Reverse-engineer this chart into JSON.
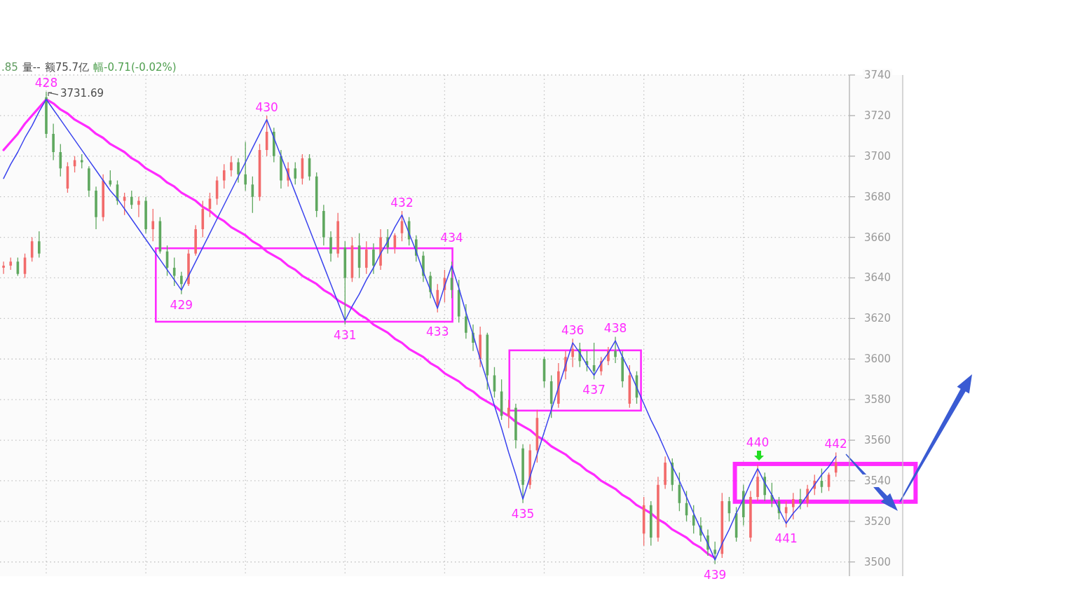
{
  "chart_data": {
    "type": "candlestick",
    "annotations": [
      ".85",
      "量--",
      "额75.7亿",
      "幅-0.71(-0.02%)",
      "3731.69",
      {
        "text": "428",
        "y": 3728
      },
      {
        "text": "429",
        "y": 3634
      },
      {
        "text": "430",
        "y": 3718
      },
      {
        "text": "431",
        "y": 3619
      },
      {
        "text": "432",
        "y": 3671
      },
      {
        "text": "433",
        "y": 3625
      },
      {
        "text": "434",
        "y": 3646
      },
      {
        "text": "435",
        "y": 3531
      },
      {
        "text": "436",
        "y": 3608
      },
      {
        "text": "437",
        "y": 3592
      },
      {
        "text": "438",
        "y": 3609
      },
      {
        "text": "439",
        "y": 3501
      },
      {
        "text": "440",
        "y": 3546
      },
      {
        "text": "441",
        "y": 3519
      },
      {
        "text": "442",
        "y": 3552
      }
    ],
    "categories": [
      null,
      null,
      null,
      null,
      null,
      null,
      null,
      null,
      null,
      null,
      null,
      null,
      null,
      null,
      null,
      null,
      null,
      null,
      null,
      null,
      null,
      null,
      null,
      null,
      null,
      null,
      null,
      null,
      null,
      null,
      null,
      null,
      null,
      null,
      null,
      null,
      null,
      null,
      null,
      null,
      null,
      null,
      null,
      null,
      null,
      null,
      null,
      null,
      null,
      null,
      null,
      null,
      null,
      null,
      null,
      null,
      null,
      null,
      null,
      null,
      null,
      null,
      null,
      null,
      null,
      null,
      null,
      null,
      null,
      null,
      null,
      null,
      null,
      null,
      null,
      null,
      null,
      null,
      null,
      null,
      null,
      null,
      null,
      null,
      null,
      null,
      null,
      null,
      null,
      null,
      null,
      null,
      null,
      null,
      null,
      null,
      null,
      null,
      null,
      null,
      null,
      null,
      null,
      null,
      null,
      null,
      null,
      null,
      null,
      null,
      null,
      null,
      null,
      null,
      null,
      null,
      null,
      null
    ],
    "ohlc": [
      [
        3645,
        3648,
        3642,
        3646
      ],
      [
        3646,
        3650,
        3644,
        3648
      ],
      [
        3648,
        3650,
        3641,
        3642
      ],
      [
        3642,
        3652,
        3640,
        3650
      ],
      [
        3650,
        3660,
        3648,
        3658
      ],
      [
        3658,
        3663,
        3650,
        3652
      ],
      [
        3729,
        3731.69,
        3709,
        3711
      ],
      [
        3711,
        3716,
        3698,
        3702
      ],
      [
        3702,
        3706,
        3690,
        3694
      ],
      [
        3684,
        3697,
        3682,
        3695
      ],
      [
        3695,
        3700,
        3692,
        3698
      ],
      [
        3698,
        3701,
        3694,
        3697
      ],
      [
        3694,
        3695,
        3680,
        3683
      ],
      [
        3683,
        3685,
        3664,
        3670
      ],
      [
        3670,
        3691,
        3668,
        3688
      ],
      [
        3688,
        3693,
        3685,
        3686
      ],
      [
        3686,
        3688,
        3676,
        3678
      ],
      [
        3678,
        3682,
        3671,
        3680
      ],
      [
        3680,
        3683,
        3674,
        3676
      ],
      [
        3676,
        3680,
        3670,
        3678
      ],
      [
        3678,
        3680,
        3662,
        3664
      ],
      [
        3664,
        3674,
        3658,
        3668
      ],
      [
        3668,
        3670,
        3652,
        3653
      ],
      [
        3653,
        3656,
        3641,
        3645
      ],
      [
        3645,
        3650,
        3636,
        3641
      ],
      [
        3641,
        3643,
        3632,
        3637
      ],
      [
        3637,
        3654,
        3636,
        3652
      ],
      [
        3652,
        3666,
        3651,
        3664
      ],
      [
        3664,
        3678,
        3660,
        3674
      ],
      [
        3674,
        3682,
        3670,
        3679
      ],
      [
        3679,
        3690,
        3676,
        3688
      ],
      [
        3688,
        3696,
        3684,
        3693
      ],
      [
        3693,
        3700,
        3690,
        3697
      ],
      [
        3697,
        3699,
        3687,
        3691
      ],
      [
        3691,
        3707,
        3683,
        3686
      ],
      [
        3686,
        3690,
        3672,
        3680
      ],
      [
        3680,
        3706,
        3678,
        3703
      ],
      [
        3703,
        3720,
        3700,
        3712
      ],
      [
        3712,
        3714,
        3697,
        3700
      ],
      [
        3700,
        3703,
        3684,
        3688
      ],
      [
        3688,
        3697,
        3685,
        3694
      ],
      [
        3694,
        3697,
        3686,
        3689
      ],
      [
        3689,
        3701,
        3686,
        3699
      ],
      [
        3699,
        3701,
        3688,
        3690
      ],
      [
        3690,
        3692,
        3670,
        3673
      ],
      [
        3673,
        3676,
        3656,
        3660
      ],
      [
        3660,
        3663,
        3648,
        3652
      ],
      [
        3652,
        3672,
        3650,
        3668
      ],
      [
        3655,
        3658,
        3617,
        3640
      ],
      [
        3640,
        3660,
        3638,
        3656
      ],
      [
        3656,
        3662,
        3640,
        3645
      ],
      [
        3645,
        3658,
        3642,
        3654
      ],
      [
        3654,
        3657,
        3642,
        3646
      ],
      [
        3646,
        3664,
        3644,
        3660
      ],
      [
        3660,
        3664,
        3652,
        3655
      ],
      [
        3655,
        3662,
        3652,
        3661
      ],
      [
        3662,
        3673,
        3658,
        3668
      ],
      [
        3668,
        3670,
        3656,
        3659
      ],
      [
        3659,
        3661,
        3648,
        3651
      ],
      [
        3651,
        3653,
        3638,
        3641
      ],
      [
        3641,
        3643,
        3630,
        3633
      ],
      [
        3626,
        3637,
        3623,
        3634
      ],
      [
        3634,
        3644,
        3628,
        3640
      ],
      [
        3640,
        3648,
        3630,
        3634
      ],
      [
        3634,
        3639,
        3618,
        3621
      ],
      [
        3621,
        3627,
        3610,
        3613
      ],
      [
        3613,
        3617,
        3604,
        3608
      ],
      [
        3600,
        3616,
        3596,
        3612
      ],
      [
        3612,
        3613,
        3585,
        3592
      ],
      [
        3592,
        3596,
        3581,
        3584
      ],
      [
        3584,
        3590,
        3570,
        3572
      ],
      [
        3572,
        3580,
        3566,
        3576
      ],
      [
        3576,
        3578,
        3556,
        3560
      ],
      [
        3556,
        3558,
        3529,
        3538
      ],
      [
        3538,
        3558,
        3536,
        3555
      ],
      [
        3555,
        3575,
        3549,
        3571
      ],
      [
        3600,
        3601,
        3586,
        3589
      ],
      [
        3589,
        3592,
        3571,
        3578
      ],
      [
        3578,
        3598,
        3576,
        3594
      ],
      [
        3594,
        3604,
        3590,
        3601
      ],
      [
        3601,
        3610,
        3596,
        3605
      ],
      [
        3605,
        3608,
        3596,
        3599
      ],
      [
        3599,
        3604,
        3594,
        3597
      ],
      [
        3597,
        3608,
        3590,
        3594
      ],
      [
        3594,
        3601,
        3592,
        3599
      ],
      [
        3599,
        3606,
        3597,
        3604
      ],
      [
        3604,
        3611,
        3598,
        3601
      ],
      [
        3601,
        3604,
        3586,
        3589
      ],
      [
        3578,
        3597,
        3576,
        3592
      ],
      [
        3592,
        3594,
        3578,
        3581
      ],
      [
        3514,
        3532,
        3508,
        3528
      ],
      [
        3528,
        3530,
        3508,
        3512
      ],
      [
        3512,
        3542,
        3510,
        3538
      ],
      [
        3538,
        3552,
        3536,
        3549
      ],
      [
        3549,
        3551,
        3535,
        3538
      ],
      [
        3538,
        3544,
        3525,
        3529
      ],
      [
        3529,
        3535,
        3520,
        3523
      ],
      [
        3523,
        3528,
        3514,
        3518
      ],
      [
        3518,
        3522,
        3510,
        3513
      ],
      [
        3513,
        3516,
        3503,
        3506
      ],
      [
        3506,
        3510,
        3499,
        3504
      ],
      [
        3504,
        3534,
        3502,
        3530
      ],
      [
        3530,
        3532,
        3520,
        3524
      ],
      [
        3524,
        3527,
        3510,
        3512
      ],
      [
        3535,
        3538,
        3518,
        3522
      ],
      [
        3512,
        3535,
        3510,
        3532
      ],
      [
        3532,
        3548,
        3530,
        3542
      ],
      [
        3542,
        3544,
        3530,
        3533
      ],
      [
        3533,
        3539,
        3527,
        3530
      ],
      [
        3530,
        3532,
        3521,
        3524
      ],
      [
        3524,
        3530,
        3517,
        3527
      ],
      [
        3527,
        3534,
        3521,
        3531
      ],
      [
        3531,
        3536,
        3526,
        3529
      ],
      [
        3529,
        3538,
        3527,
        3536
      ],
      [
        3536,
        3543,
        3533,
        3540
      ],
      [
        3540,
        3546,
        3534,
        3537
      ],
      [
        3537,
        3544,
        3535,
        3543
      ],
      [
        3544,
        3554,
        3542,
        3549
      ]
    ],
    "colors": [
      "#f26b6b",
      "#f26b6b",
      "#5fa85f",
      "#f26b6b",
      "#f26b6b",
      "#5fa85f",
      "#5fa85f",
      "#5fa85f",
      "#5fa85f",
      "#f26b6b",
      "#f26b6b",
      "#5fa85f",
      "#5fa85f",
      "#5fa85f",
      "#f26b6b",
      "#5fa85f",
      "#5fa85f",
      "#f26b6b",
      "#5fa85f",
      "#f26b6b",
      "#5fa85f",
      "#f26b6b",
      "#5fa85f",
      "#5fa85f",
      "#5fa85f",
      "#5fa85f",
      "#f26b6b",
      "#f26b6b",
      "#f26b6b",
      "#f26b6b",
      "#f26b6b",
      "#f26b6b",
      "#f26b6b",
      "#5fa85f",
      "#5fa85f",
      "#5fa85f",
      "#f26b6b",
      "#f26b6b",
      "#5fa85f",
      "#5fa85f",
      "#f26b6b",
      "#5fa85f",
      "#f26b6b",
      "#5fa85f",
      "#5fa85f",
      "#5fa85f",
      "#5fa85f",
      "#f26b6b",
      "#5fa85f",
      "#f26b6b",
      "#5fa85f",
      "#f26b6b",
      "#5fa85f",
      "#f26b6b",
      "#5fa85f",
      "#f26b6b",
      "#f26b6b",
      "#5fa85f",
      "#5fa85f",
      "#5fa85f",
      "#5fa85f",
      "#f26b6b",
      "#f26b6b",
      "#5fa85f",
      "#5fa85f",
      "#5fa85f",
      "#5fa85f",
      "#f26b6b",
      "#5fa85f",
      "#5fa85f",
      "#5fa85f",
      "#f26b6b",
      "#5fa85f",
      "#5fa85f",
      "#f26b6b",
      "#f26b6b",
      "#5fa85f",
      "#5fa85f",
      "#f26b6b",
      "#f26b6b",
      "#f26b6b",
      "#5fa85f",
      "#5fa85f",
      "#5fa85f",
      "#f26b6b",
      "#f26b6b",
      "#5fa85f",
      "#5fa85f",
      "#f26b6b",
      "#5fa85f",
      "#f26b6b",
      "#5fa85f",
      "#f26b6b",
      "#f26b6b",
      "#5fa85f",
      "#5fa85f",
      "#5fa85f",
      "#5fa85f",
      "#5fa85f",
      "#5fa85f",
      "#5fa85f",
      "#f26b6b",
      "#5fa85f",
      "#5fa85f",
      "#5fa85f",
      "#f26b6b",
      "#f26b6b",
      "#5fa85f",
      "#5fa85f",
      "#5fa85f",
      "#f26b6b",
      "#f26b6b",
      "#5fa85f",
      "#f26b6b",
      "#f26b6b",
      "#5fa85f",
      "#f26b6b",
      "#f26b6b"
    ],
    "series": [
      {
        "type": "line",
        "color": "#3b44ee",
        "values": [
          3689,
          3696,
          3702,
          3709,
          3715,
          3722,
          3728,
          3723,
          3718,
          3713,
          3708,
          3703,
          3698,
          3693,
          3688,
          3683,
          3679,
          3674,
          3669,
          3664,
          3659,
          3654,
          3649,
          3644,
          3639,
          3634,
          3641,
          3648,
          3655,
          3662,
          3669,
          3676,
          3683,
          3690,
          3697,
          3704,
          3711,
          3718,
          3709,
          3700,
          3691,
          3682,
          3673,
          3664,
          3655,
          3646,
          3637,
          3628,
          3619,
          3626,
          3632,
          3639,
          3645,
          3652,
          3658,
          3665,
          3671,
          3662,
          3653,
          3643,
          3634,
          3625,
          3636,
          3646,
          3635,
          3623,
          3612,
          3600,
          3589,
          3577,
          3566,
          3554,
          3543,
          3531,
          3542,
          3553,
          3564,
          3575,
          3586,
          3597,
          3608,
          3603,
          3597,
          3592,
          3598,
          3603,
          3609,
          3601,
          3594,
          3586,
          3578,
          3570,
          3563,
          3555,
          3547,
          3540,
          3532,
          3524,
          3516,
          3509,
          3501,
          3509,
          3516,
          3524,
          3531,
          3539,
          3546,
          3539,
          3533,
          3526,
          3519,
          3524,
          3528,
          3533,
          3538,
          3543,
          3547,
          3552
        ]
      },
      {
        "type": "line",
        "color": "#ff2bff",
        "values": [
          3703,
          3707,
          3711,
          3716,
          3720,
          3724,
          3728,
          3726,
          3723,
          3721,
          3718,
          3716,
          3714,
          3711,
          3709,
          3706,
          3704,
          3702,
          3699,
          3697,
          3694,
          3692,
          3690,
          3687,
          3685,
          3682,
          3680,
          3678,
          3675,
          3673,
          3670,
          3668,
          3665,
          3663,
          3661,
          3658,
          3656,
          3653,
          3651,
          3649,
          3646,
          3644,
          3641,
          3639,
          3637,
          3634,
          3632,
          3629,
          3627,
          3625,
          3622,
          3620,
          3617,
          3615,
          3613,
          3610,
          3608,
          3605,
          3603,
          3601,
          3598,
          3596,
          3593,
          3591,
          3589,
          3586,
          3584,
          3581,
          3579,
          3577,
          3574,
          3572,
          3569,
          3567,
          3565,
          3562,
          3560,
          3557,
          3555,
          3553,
          3550,
          3548,
          3545,
          3543,
          3540,
          3538,
          3536,
          3533,
          3531,
          3528,
          3526,
          3524,
          3521,
          3519,
          3516,
          3514,
          3512,
          3509,
          3507,
          3504,
          3502,
          null,
          null,
          null,
          null,
          null,
          null,
          null,
          null,
          null,
          null,
          null,
          null,
          null,
          null,
          null,
          null,
          null
        ]
      }
    ],
    "ylim": [
      3493,
      3740
    ],
    "yticks": [
      3500,
      3520,
      3540,
      3560,
      3580,
      3600,
      3620,
      3640,
      3660,
      3680,
      3700,
      3720,
      3740
    ],
    "grid": true,
    "tick_labels": "y"
  }
}
